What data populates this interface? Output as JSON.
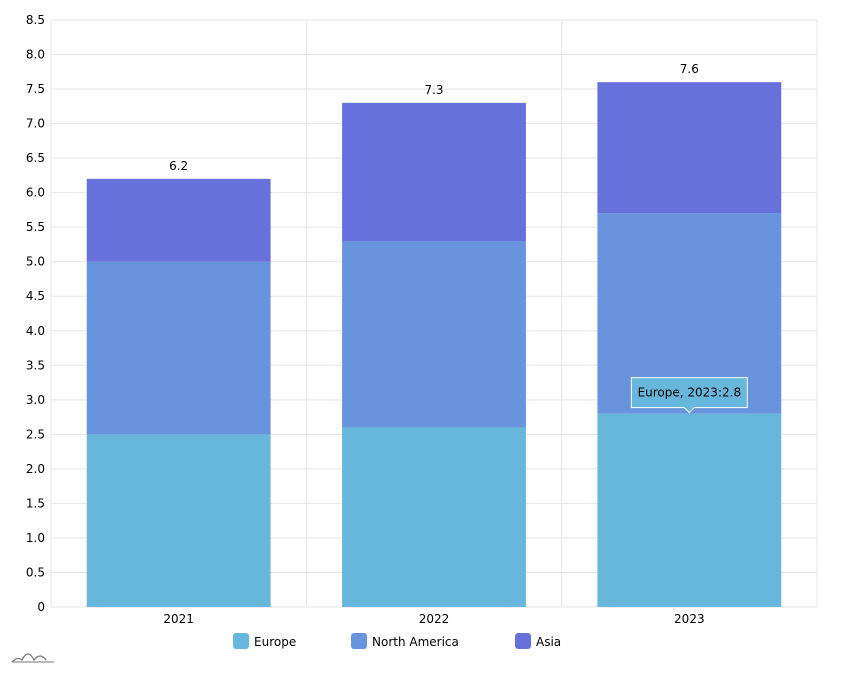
{
  "chart_data": {
    "type": "bar",
    "stacked": true,
    "categories": [
      "2021",
      "2022",
      "2023"
    ],
    "series": [
      {
        "name": "Europe",
        "values": [
          2.5,
          2.6,
          2.8
        ],
        "color": "#67b7dc"
      },
      {
        "name": "North America",
        "values": [
          2.5,
          2.7,
          2.9
        ],
        "color": "#6794dc"
      },
      {
        "name": "Asia",
        "values": [
          1.2,
          2.0,
          1.9
        ],
        "color": "#6771dc"
      }
    ],
    "totals": [
      "6.2",
      "7.3",
      "7.6"
    ],
    "ylim": [
      0,
      8.5
    ],
    "yticks": [
      "0",
      "0.5",
      "1.0",
      "1.5",
      "2.0",
      "2.5",
      "3.0",
      "3.5",
      "4.0",
      "4.5",
      "5.0",
      "5.5",
      "6.0",
      "6.5",
      "7.0",
      "7.5",
      "8.0",
      "8.5"
    ],
    "grid": true,
    "legend": "bottom-center",
    "tooltip": {
      "text": "Europe, 2023:2.8",
      "series_index": 0,
      "category_index": 2
    }
  },
  "logo_icon": "amcharts-logo-icon"
}
